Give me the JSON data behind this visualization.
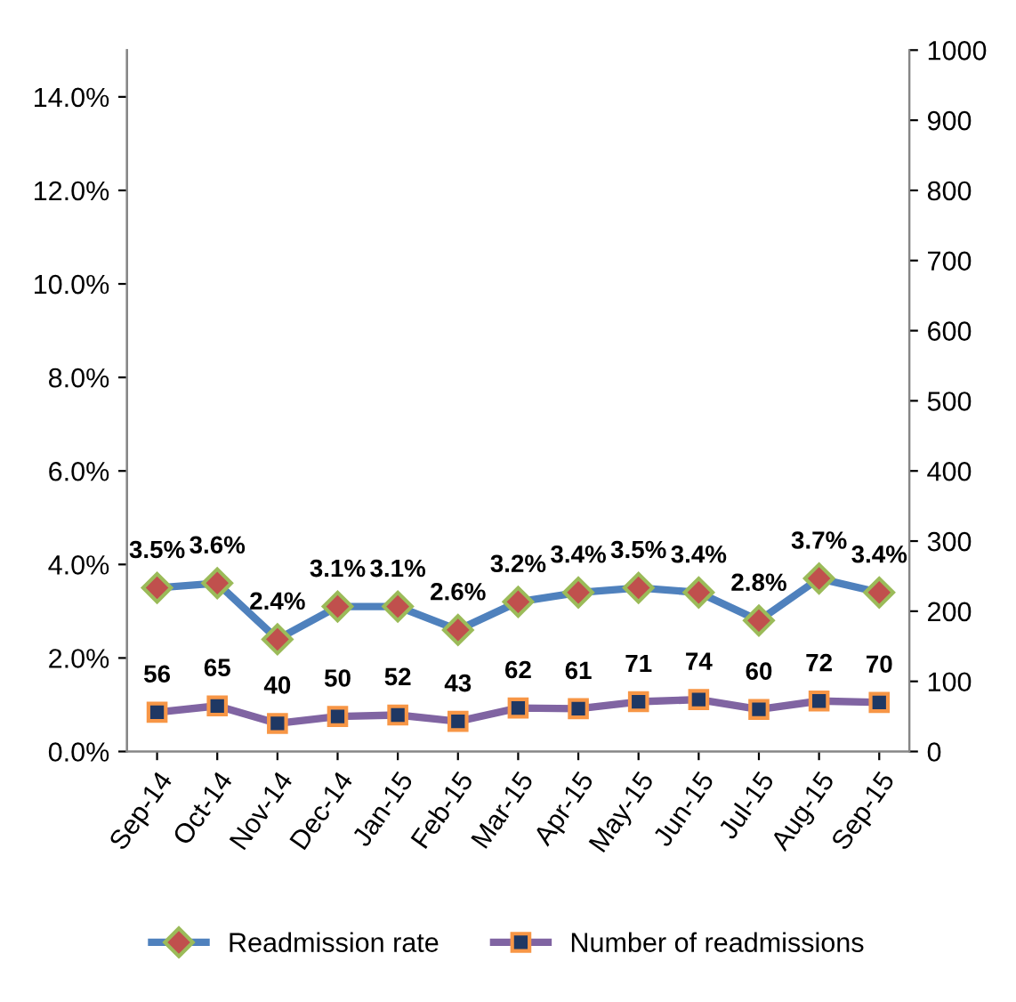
{
  "chart_data": {
    "type": "line",
    "categories": [
      "Sep-14",
      "Oct-14",
      "Nov-14",
      "Dec-14",
      "Jan-15",
      "Feb-15",
      "Mar-15",
      "Apr-15",
      "May-15",
      "Jun-15",
      "Jul-15",
      "Aug-15",
      "Sep-15"
    ],
    "series": [
      {
        "name": "Readmission rate",
        "color": "#4f81bd",
        "marker": "diamond",
        "colors": [
          "#c0504d",
          "#c0504d",
          "#c0504d",
          "#c0504d",
          "#c0504d",
          "#c0504d",
          "#c0504d",
          "#c0504d",
          "#c0504d",
          "#c0504d",
          "#c0504d",
          "#c0504d",
          "#c0504d"
        ],
        "axis": "y",
        "values": [
          3.5,
          3.6,
          2.4,
          3.1,
          3.1,
          2.6,
          3.2,
          3.4,
          3.5,
          3.4,
          2.8,
          3.7,
          3.4
        ],
        "value_labels": [
          "3.5%",
          "3.6%",
          "2.4%",
          "3.1%",
          "3.1%",
          "2.6%",
          "3.2%",
          "3.4%",
          "3.5%",
          "3.4%",
          "2.8%",
          "3.7%",
          "3.4%"
        ]
      },
      {
        "name": "Number of readmissions",
        "color": "#8064a2",
        "marker": "square",
        "colors": [
          "#1f3864",
          "#1f3864",
          "#1f3864",
          "#1f3864",
          "#1f3864",
          "#1f3864",
          "#1f3864",
          "#1f3864",
          "#1f3864",
          "#1f3864",
          "#1f3864",
          "#1f3864",
          "#1f3864"
        ],
        "axis": "y2",
        "values": [
          56,
          65,
          40,
          50,
          52,
          43,
          62,
          61,
          71,
          74,
          60,
          72,
          70
        ],
        "value_labels": [
          "56",
          "65",
          "40",
          "50",
          "52",
          "43",
          "62",
          "61",
          "71",
          "74",
          "60",
          "72",
          "70"
        ]
      }
    ],
    "ylim": [
      0,
      15
    ],
    "yticks": [
      {
        "value": 0,
        "label": "0.0%"
      },
      {
        "value": 2,
        "label": "2.0%"
      },
      {
        "value": 4,
        "label": "4.0%"
      },
      {
        "value": 6,
        "label": "6.0%"
      },
      {
        "value": 8,
        "label": "8.0%"
      },
      {
        "value": 10,
        "label": "10.0%"
      },
      {
        "value": 12,
        "label": "12.0%"
      },
      {
        "value": 14,
        "label": "14.0%"
      }
    ],
    "y2lim": [
      0,
      1000
    ],
    "y2ticks": [
      0,
      100,
      200,
      300,
      400,
      500,
      600,
      700,
      800,
      900,
      1000
    ],
    "grid": false,
    "legend": "bottom"
  }
}
